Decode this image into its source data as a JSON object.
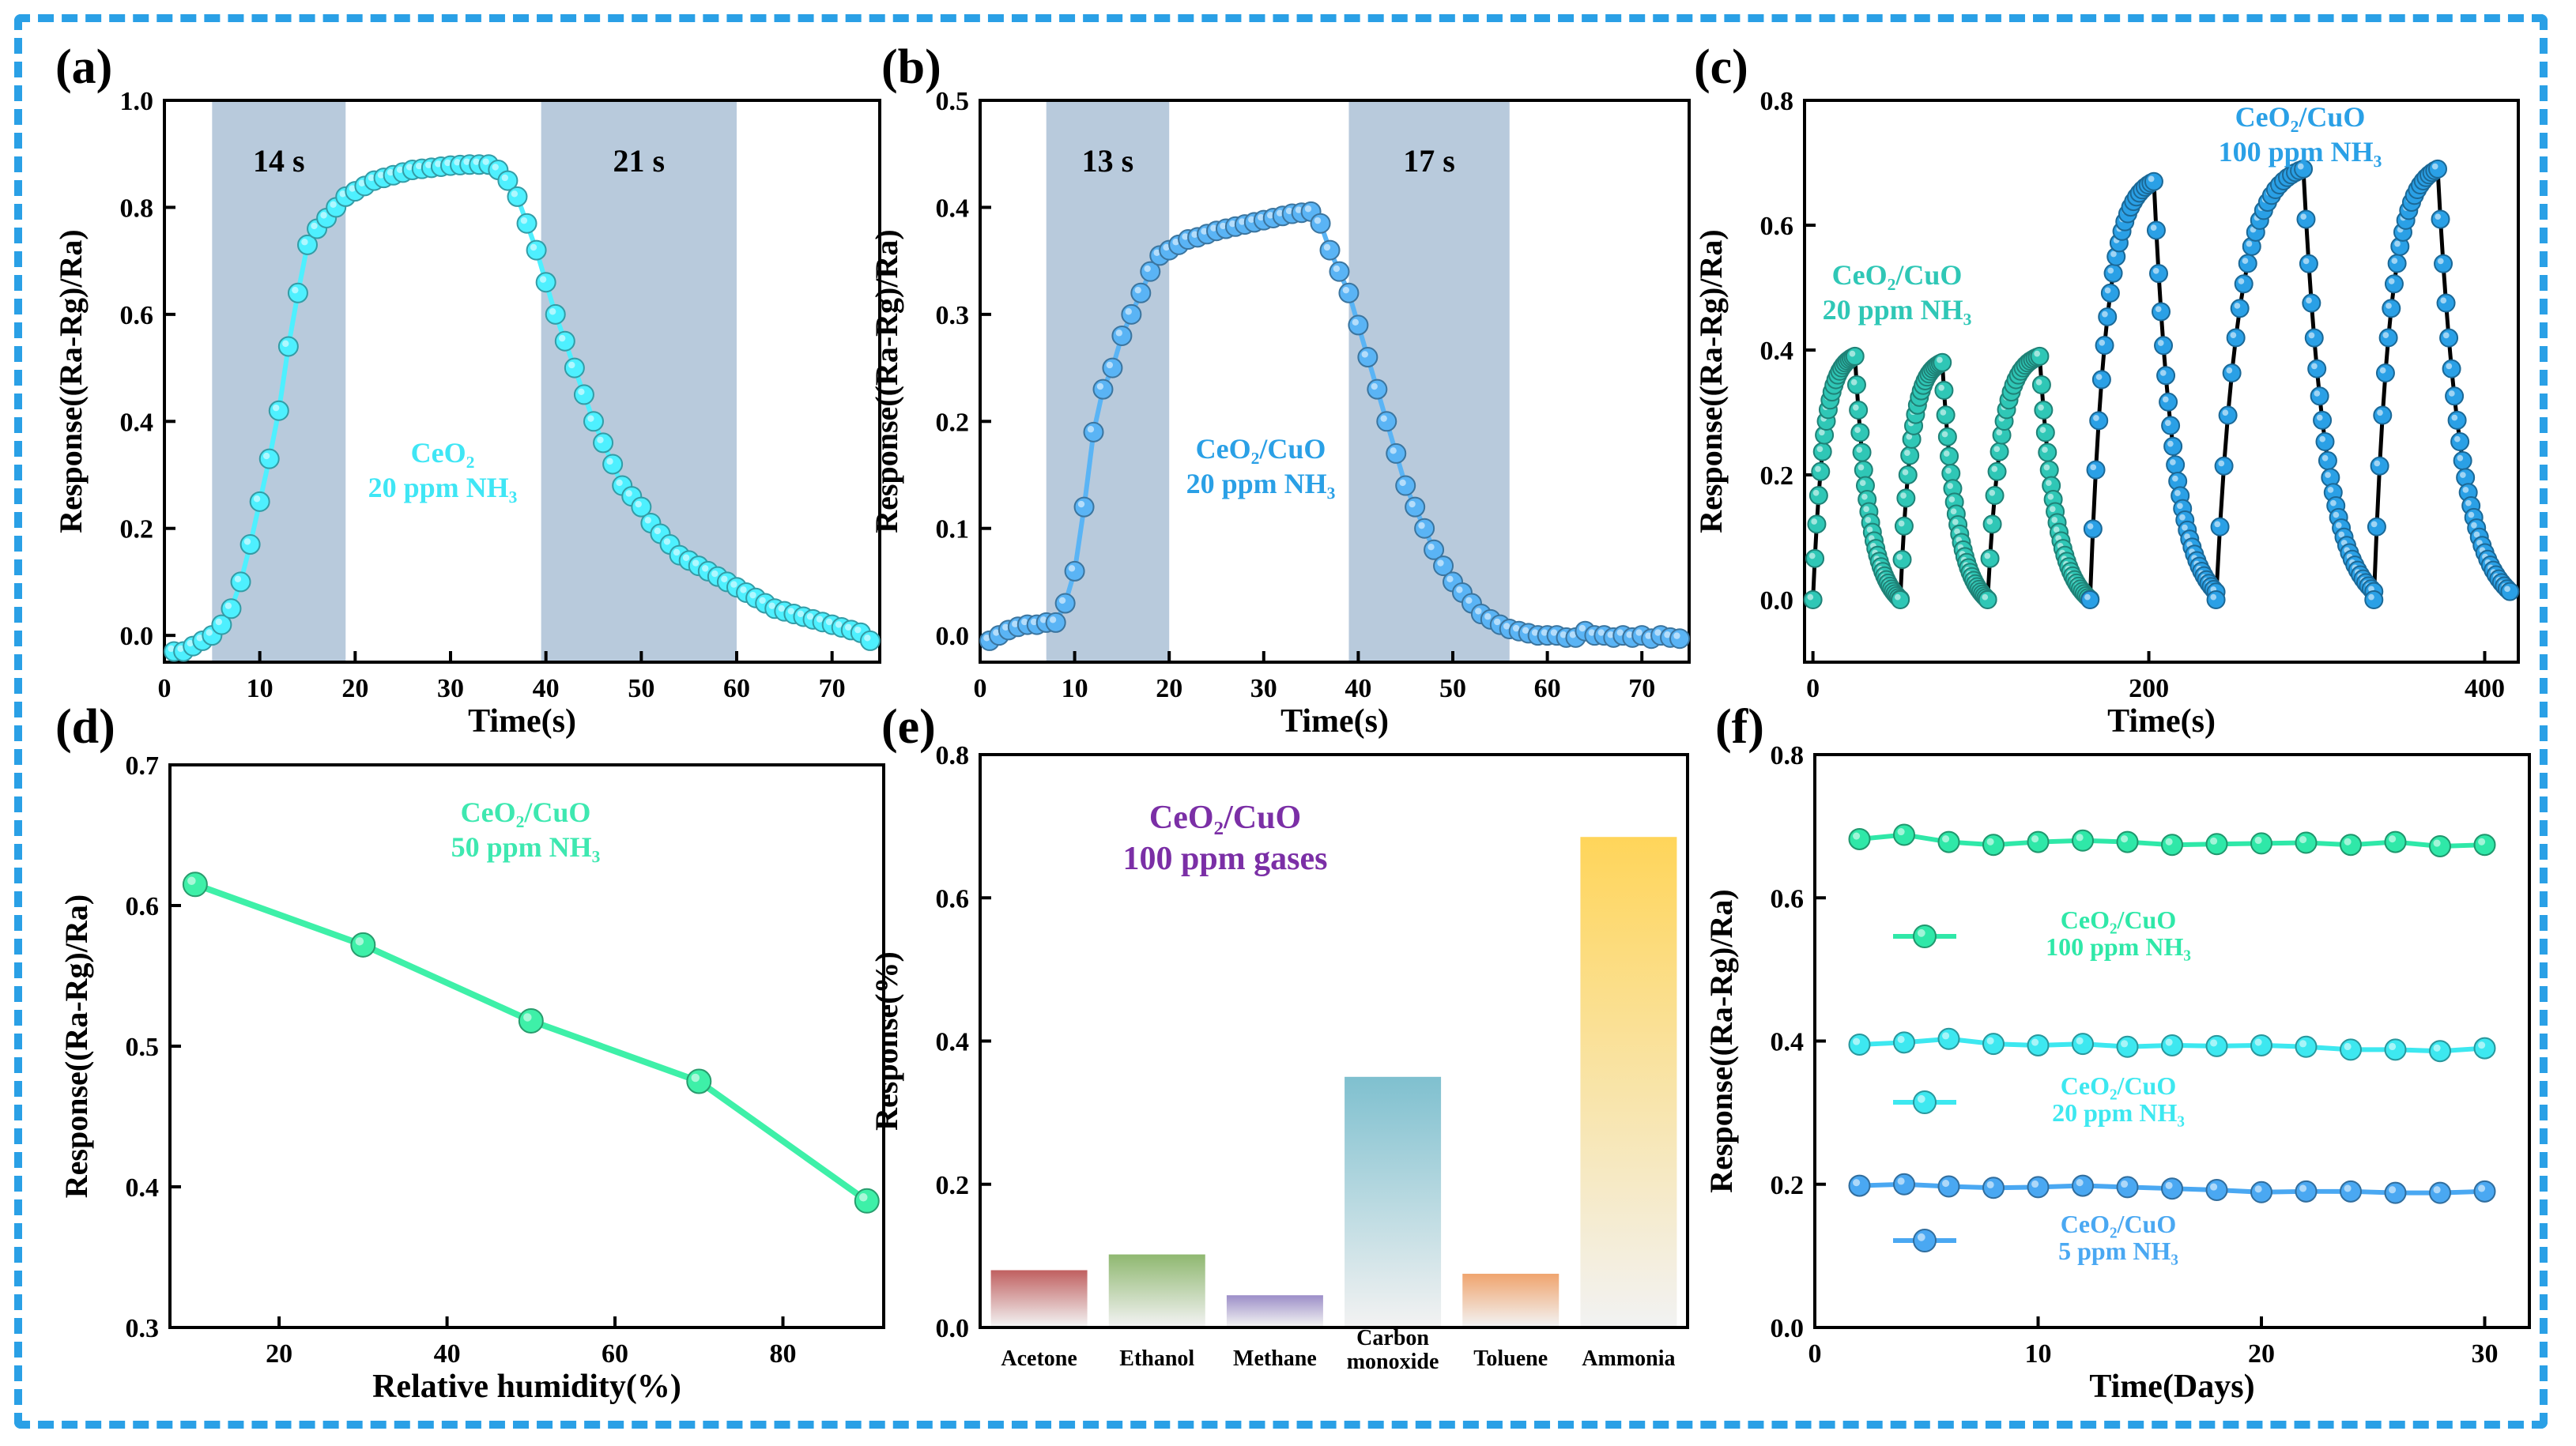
{
  "chart_data": [
    {
      "id": "a",
      "panel_label": "(a)",
      "type": "scatter",
      "xlabel": "Time(s)",
      "ylabel": "Response((Ra-Rg)/Ra)",
      "xlim": [
        0,
        75
      ],
      "ylim": [
        -0.05,
        1.0
      ],
      "xticks": [
        "0",
        "10",
        "20",
        "30",
        "40",
        "50",
        "60",
        "70"
      ],
      "yticks": [
        "0.0",
        "0.2",
        "0.4",
        "0.6",
        "0.8",
        "1.0"
      ],
      "shaded_regions": [
        {
          "x": [
            5,
            19
          ],
          "label": "14 s"
        },
        {
          "x": [
            39.5,
            60
          ],
          "label": "21 s"
        }
      ],
      "annotation": [
        "CeO₂",
        "20 ppm NH₃"
      ],
      "marker_color": "#4ef0ff",
      "series": [
        {
          "name": "CeO₂ 20 ppm NH₃",
          "x": [
            1,
            2,
            3,
            4,
            5,
            6,
            7,
            8,
            9,
            10,
            11,
            12,
            13,
            14,
            15,
            16,
            17,
            18,
            19,
            20,
            21,
            22,
            23,
            24,
            25,
            26,
            27,
            28,
            29,
            30,
            31,
            32,
            33,
            34,
            35,
            36,
            37,
            38,
            39,
            40,
            41,
            42,
            43,
            44,
            45,
            46,
            47,
            48,
            49,
            50,
            51,
            52,
            53,
            54,
            55,
            56,
            57,
            58,
            59,
            60,
            61,
            62,
            63,
            64,
            65,
            66,
            67,
            68,
            69,
            70,
            71,
            72,
            73,
            74
          ],
          "y": [
            -0.03,
            -0.03,
            -0.02,
            -0.01,
            0.0,
            0.02,
            0.05,
            0.1,
            0.17,
            0.25,
            0.33,
            0.42,
            0.54,
            0.64,
            0.73,
            0.76,
            0.78,
            0.8,
            0.82,
            0.83,
            0.84,
            0.85,
            0.855,
            0.86,
            0.865,
            0.87,
            0.872,
            0.874,
            0.876,
            0.878,
            0.879,
            0.88,
            0.88,
            0.88,
            0.87,
            0.85,
            0.82,
            0.77,
            0.72,
            0.66,
            0.6,
            0.55,
            0.5,
            0.45,
            0.4,
            0.36,
            0.32,
            0.28,
            0.26,
            0.24,
            0.21,
            0.19,
            0.17,
            0.15,
            0.14,
            0.13,
            0.12,
            0.11,
            0.1,
            0.09,
            0.08,
            0.07,
            0.06,
            0.05,
            0.045,
            0.04,
            0.035,
            0.03,
            0.025,
            0.02,
            0.015,
            0.01,
            0.005,
            -0.01
          ]
        }
      ]
    },
    {
      "id": "b",
      "panel_label": "(b)",
      "type": "scatter",
      "xlabel": "Time(s)",
      "ylabel": "Response((Ra-Rg)/Ra)",
      "xlim": [
        0,
        75
      ],
      "ylim": [
        -0.025,
        0.5
      ],
      "xticks": [
        "0",
        "10",
        "20",
        "30",
        "40",
        "50",
        "60",
        "70"
      ],
      "yticks": [
        "0.0",
        "0.1",
        "0.2",
        "0.3",
        "0.4",
        "0.5"
      ],
      "shaded_regions": [
        {
          "x": [
            7,
            20
          ],
          "label": "13 s"
        },
        {
          "x": [
            39,
            56
          ],
          "label": "17 s"
        }
      ],
      "annotation": [
        "CeO₂/CuO",
        "20 ppm NH₃"
      ],
      "marker_color": "#5ab4f5",
      "series": [
        {
          "name": "CeO₂/CuO 20 ppm NH₃",
          "x": [
            1,
            2,
            3,
            4,
            5,
            6,
            7,
            8,
            9,
            10,
            11,
            12,
            13,
            14,
            15,
            16,
            17,
            18,
            19,
            20,
            21,
            22,
            23,
            24,
            25,
            26,
            27,
            28,
            29,
            30,
            31,
            32,
            33,
            34,
            35,
            36,
            37,
            38,
            39,
            40,
            41,
            42,
            43,
            44,
            45,
            46,
            47,
            48,
            49,
            50,
            51,
            52,
            53,
            54,
            55,
            56,
            57,
            58,
            59,
            60,
            61,
            62,
            63,
            64,
            65,
            66,
            67,
            68,
            69,
            70,
            71,
            72,
            73,
            74
          ],
          "y": [
            -0.005,
            0.0,
            0.005,
            0.008,
            0.01,
            0.01,
            0.012,
            0.012,
            0.03,
            0.06,
            0.12,
            0.19,
            0.23,
            0.25,
            0.28,
            0.3,
            0.32,
            0.34,
            0.355,
            0.36,
            0.365,
            0.37,
            0.372,
            0.375,
            0.378,
            0.38,
            0.382,
            0.384,
            0.386,
            0.388,
            0.39,
            0.392,
            0.394,
            0.395,
            0.396,
            0.385,
            0.36,
            0.34,
            0.32,
            0.29,
            0.26,
            0.23,
            0.2,
            0.17,
            0.14,
            0.12,
            0.1,
            0.08,
            0.065,
            0.05,
            0.04,
            0.03,
            0.02,
            0.015,
            0.01,
            0.006,
            0.004,
            0.002,
            0.0,
            0.0,
            0.0,
            -0.002,
            -0.002,
            0.004,
            0.0,
            0.0,
            -0.002,
            0.0,
            -0.002,
            0.0,
            -0.003,
            0.0,
            -0.002,
            -0.003
          ]
        }
      ]
    },
    {
      "id": "c",
      "panel_label": "(c)",
      "type": "scatter",
      "xlabel": "Time(s)",
      "ylabel": "Response((Ra-Rg)/Ra)",
      "xlim": [
        -5,
        420
      ],
      "ylim": [
        -0.1,
        0.8
      ],
      "xticks": [
        "0",
        "200",
        "400"
      ],
      "yticks": [
        "0.0",
        "0.2",
        "0.4",
        "0.6",
        "0.8"
      ],
      "annotations": [
        {
          "lines": [
            "CeO₂/CuO",
            "20 ppm NH₃"
          ],
          "color": "#2fc7b6"
        },
        {
          "lines": [
            "CeO₂/CuO",
            "100 ppm NH₃"
          ],
          "color": "#2aa0e6"
        }
      ],
      "cycles": [
        {
          "concentration": "20 ppm NH₃",
          "start": 0,
          "rise": 25,
          "end": 52,
          "peak": 0.39
        },
        {
          "concentration": "20 ppm NH₃",
          "start": 52,
          "rise": 77,
          "end": 104,
          "peak": 0.38
        },
        {
          "concentration": "20 ppm NH₃",
          "start": 104,
          "rise": 135,
          "end": 165,
          "peak": 0.39
        },
        {
          "concentration": "100 ppm NH₃",
          "start": 165,
          "rise": 203,
          "end": 240,
          "peak": 0.67
        },
        {
          "concentration": "100 ppm NH₃",
          "start": 240,
          "rise": 292,
          "end": 334,
          "peak": 0.69
        },
        {
          "concentration": "100 ppm NH₃",
          "start": 334,
          "rise": 372,
          "end": 415,
          "peak": 0.69
        }
      ]
    },
    {
      "id": "d",
      "panel_label": "(d)",
      "type": "line",
      "xlabel": "Relative humidity(%)",
      "ylabel": "Response((Ra-Rg)/Ra)",
      "xlim": [
        7,
        92
      ],
      "ylim": [
        0.3,
        0.7
      ],
      "xticks": [
        "20",
        "40",
        "60",
        "80"
      ],
      "yticks": [
        "0.3",
        "0.4",
        "0.5",
        "0.6",
        "0.7"
      ],
      "annotation": [
        "CeO₂/CuO",
        "50 ppm NH₃"
      ],
      "series": [
        {
          "name": "CeO₂/CuO 50 ppm NH₃",
          "x": [
            10,
            30,
            50,
            70,
            90
          ],
          "y": [
            0.615,
            0.572,
            0.518,
            0.475,
            0.39
          ]
        }
      ]
    },
    {
      "id": "e",
      "panel_label": "(e)",
      "type": "bar",
      "xlabel": "",
      "ylabel": "Response(%)",
      "ylim": [
        0,
        0.8
      ],
      "yticks": [
        "0.0",
        "0.2",
        "0.4",
        "0.6",
        "0.8"
      ],
      "annotation": [
        "CeO₂/CuO",
        "100 ppm gases"
      ],
      "categories": [
        [
          "Acetone"
        ],
        [
          "Ethanol"
        ],
        [
          "Methane"
        ],
        [
          "Carbon",
          "monoxide"
        ],
        [
          "Toluene"
        ],
        [
          "Ammonia"
        ]
      ],
      "values": [
        0.08,
        0.102,
        0.045,
        0.35,
        0.075,
        0.685
      ],
      "bar_colors": [
        "#c06060",
        "#8fb870",
        "#9c8ec8",
        "#7fc0cf",
        "#f0a46e",
        "#ffd55a"
      ]
    },
    {
      "id": "f",
      "panel_label": "(f)",
      "type": "line",
      "xlabel": "Time(Days)",
      "ylabel": "Response((Ra-Rg)/Ra)",
      "xlim": [
        0,
        32
      ],
      "ylim": [
        0,
        0.8
      ],
      "xticks": [
        "0",
        "10",
        "20",
        "30"
      ],
      "yticks": [
        "0.0",
        "0.2",
        "0.4",
        "0.6",
        "0.8"
      ],
      "x": [
        2,
        4,
        6,
        8,
        10,
        12,
        14,
        16,
        18,
        20,
        22,
        24,
        26,
        28,
        30
      ],
      "series": [
        {
          "name": [
            "CeO₂/CuO",
            "100 ppm NH₃"
          ],
          "color": "#2fe8a8",
          "values": [
            0.682,
            0.688,
            0.678,
            0.674,
            0.678,
            0.68,
            0.678,
            0.674,
            0.675,
            0.676,
            0.677,
            0.674,
            0.678,
            0.672,
            0.674
          ]
        },
        {
          "name": [
            "CeO₂/CuO",
            "20 ppm NH₃"
          ],
          "color": "#3de8f0",
          "values": [
            0.395,
            0.398,
            0.403,
            0.396,
            0.394,
            0.396,
            0.392,
            0.394,
            0.393,
            0.394,
            0.392,
            0.388,
            0.388,
            0.386,
            0.39
          ]
        },
        {
          "name": [
            "CeO₂/CuO",
            "5 ppm NH₃"
          ],
          "color": "#4aa8f2",
          "values": [
            0.198,
            0.2,
            0.197,
            0.195,
            0.196,
            0.198,
            0.196,
            0.194,
            0.192,
            0.189,
            0.19,
            0.19,
            0.188,
            0.188,
            0.19
          ]
        }
      ]
    }
  ]
}
